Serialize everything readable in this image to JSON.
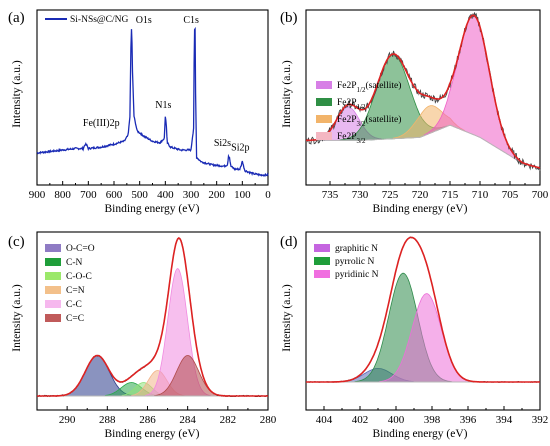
{
  "chart_data": [
    {
      "panel": "(a)",
      "type": "line",
      "xlabel": "Binding energy (eV)",
      "ylabel": "Intensity (a.u.)",
      "xlim": [
        900,
        0
      ],
      "xticks": [
        900,
        800,
        700,
        600,
        500,
        400,
        300,
        200,
        100,
        0
      ],
      "x_reversed": true,
      "legend_position": "top-left",
      "legend": [
        {
          "label": "Si-NSs@C/NG",
          "color": "#1a2bb5"
        }
      ],
      "series": [
        {
          "name": "Si-NSs@C/NG",
          "color": "#1a2bb5",
          "x": [
            900,
            850,
            800,
            750,
            720,
            712,
            705,
            700,
            650,
            600,
            560,
            545,
            538,
            533,
            531,
            528,
            522,
            510,
            480,
            450,
            420,
            404,
            400,
            397,
            393,
            380,
            340,
            300,
            290,
            287,
            284,
            282,
            278,
            260,
            220,
            170,
            158,
            154,
            150,
            145,
            130,
            110,
            103,
            100,
            97,
            90,
            60,
            30,
            0
          ],
          "y": [
            0.15,
            0.16,
            0.17,
            0.18,
            0.18,
            0.21,
            0.2,
            0.18,
            0.19,
            0.21,
            0.23,
            0.27,
            0.4,
            0.98,
            1.0,
            0.7,
            0.4,
            0.3,
            0.26,
            0.23,
            0.22,
            0.25,
            0.4,
            0.36,
            0.22,
            0.19,
            0.17,
            0.17,
            0.32,
            0.98,
            0.99,
            0.55,
            0.12,
            0.09,
            0.07,
            0.06,
            0.07,
            0.13,
            0.12,
            0.06,
            0.04,
            0.04,
            0.07,
            0.1,
            0.07,
            0.03,
            0.01,
            0.0,
            0.0
          ]
        }
      ],
      "annotations": [
        {
          "text": "O1s",
          "x": 531
        },
        {
          "text": "C1s",
          "x": 284
        },
        {
          "text": "N1s",
          "x": 400
        },
        {
          "text": "Fe(III)2p",
          "x": 712
        },
        {
          "text": "Si2s",
          "x": 154
        },
        {
          "text": "Si2p",
          "x": 100
        }
      ]
    },
    {
      "panel": "(b)",
      "type": "area",
      "xlabel": "Binding energy (eV)",
      "ylabel": "Intensity (a.u.)",
      "xlim": [
        739,
        700
      ],
      "xticks": [
        735,
        730,
        725,
        720,
        715,
        710,
        705,
        700
      ],
      "x_reversed": true,
      "legend_position": "bottom-left",
      "legend": [
        {
          "main": "Fe2P",
          "sub": "1/2",
          "post": "(satellite)",
          "color": "#d77fe6"
        },
        {
          "main": "Fe2P",
          "sub": "1/2",
          "post": "",
          "color": "#2f8f45"
        },
        {
          "main": "Fe2P",
          "sub": "3/2",
          "post": "(satellite)",
          "color": "#f2b46a"
        },
        {
          "main": "Fe2P",
          "sub": "3/2",
          "post": "",
          "color": "#f4b7c2"
        }
      ],
      "peaks": [
        {
          "label": "Fe2P1/2 (satellite)",
          "center": 732.0,
          "fwhm": 4.5,
          "height": 0.22,
          "color": "#d77fe6"
        },
        {
          "label": "Fe2P1/2",
          "center": 724.5,
          "fwhm": 6.5,
          "height": 0.55,
          "color": "#2f8f45"
        },
        {
          "label": "Fe2P3/2 (satellite)",
          "center": 718.5,
          "fwhm": 5.0,
          "height": 0.18,
          "color": "#f2b46a"
        },
        {
          "label": "Fe2P3/2",
          "center": 711.0,
          "fwhm": 6.0,
          "height": 0.78,
          "color": "#ee5fc6"
        }
      ],
      "background": {
        "x": [
          739,
          730,
          720,
          715,
          710,
          705,
          703,
          700
        ],
        "y": [
          0.2,
          0.2,
          0.22,
          0.3,
          0.22,
          0.1,
          0.05,
          0.02
        ]
      },
      "fit_color": "#dd2222",
      "raw_color": "#444444"
    },
    {
      "panel": "(c)",
      "type": "area",
      "xlabel": "Binding energy (eV)",
      "ylabel": "Intensity (a.u.)",
      "xlim": [
        291.5,
        280
      ],
      "xticks": [
        290,
        288,
        286,
        284,
        282,
        280
      ],
      "x_reversed": true,
      "legend_position": "top-left",
      "legend": [
        {
          "label": "O-C=O",
          "color": "#8f7bc4"
        },
        {
          "label": "C-N",
          "color": "#1f9e3a"
        },
        {
          "label": "C-O-C",
          "color": "#9be86a"
        },
        {
          "label": "C=N",
          "color": "#f3c08a"
        },
        {
          "label": "C-C",
          "color": "#f6b8ee"
        },
        {
          "label": "C=C",
          "color": "#c05a5a"
        }
      ],
      "peaks": [
        {
          "label": "O-C=O",
          "center": 288.5,
          "fwhm": 1.4,
          "height": 0.27,
          "color": "#2a3a8a"
        },
        {
          "label": "C-N",
          "center": 286.8,
          "fwhm": 1.2,
          "height": 0.09,
          "color": "#2aa84a"
        },
        {
          "label": "C-O-C",
          "center": 286.2,
          "fwhm": 1.0,
          "height": 0.09,
          "color": "#8fe07a"
        },
        {
          "label": "C=N",
          "center": 285.5,
          "fwhm": 1.1,
          "height": 0.17,
          "color": "#f2b48a"
        },
        {
          "label": "C-C",
          "center": 284.5,
          "fwhm": 1.15,
          "height": 0.85,
          "color": "#f08ae0"
        },
        {
          "label": "C=C",
          "center": 284.0,
          "fwhm": 1.3,
          "height": 0.27,
          "color": "#b04a4a"
        }
      ],
      "fit_color": "#dd2222",
      "raw_color": "#111111"
    },
    {
      "panel": "(d)",
      "type": "area",
      "xlabel": "Binding energy (eV)",
      "ylabel": "Intensity (a.u.)",
      "xlim": [
        405,
        392
      ],
      "xticks": [
        404,
        402,
        400,
        398,
        396,
        394,
        392
      ],
      "x_reversed": true,
      "legend_position": "top-left",
      "legend": [
        {
          "label": "graphitic N",
          "color": "#c565e0"
        },
        {
          "label": "pyrrolic N",
          "color": "#1f9e3a"
        },
        {
          "label": "pyridinic N",
          "color": "#f06ee0"
        }
      ],
      "peaks": [
        {
          "label": "graphitic N",
          "center": 401.0,
          "fwhm": 1.8,
          "height": 0.1,
          "color": "#5a6ab8"
        },
        {
          "label": "pyrrolic N",
          "center": 399.6,
          "fwhm": 1.9,
          "height": 0.8,
          "color": "#2e8b4a"
        },
        {
          "label": "pyridinic N",
          "center": 398.3,
          "fwhm": 1.9,
          "height": 0.65,
          "color": "#ec6fd8"
        }
      ],
      "fit_color": "#dd2222",
      "raw_color": "#111111"
    }
  ]
}
